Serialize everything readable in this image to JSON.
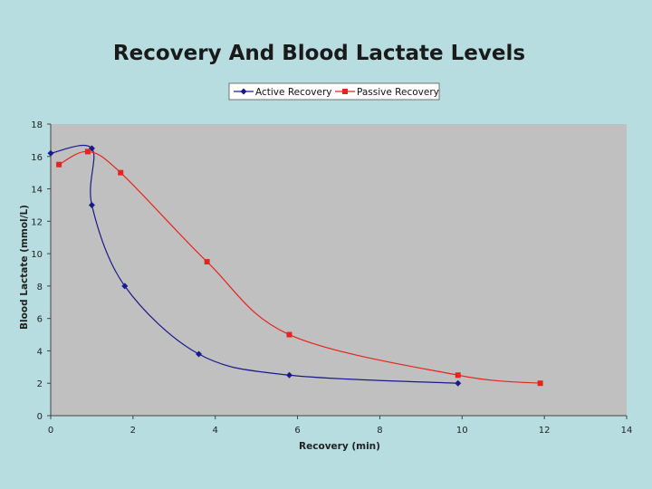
{
  "chart_data": {
    "type": "line",
    "title": "Recovery And Blood Lactate Levels",
    "xlabel": "Recovery (min)",
    "ylabel": "Blood Lactate (mmol/L)",
    "xlim": [
      0,
      14
    ],
    "ylim": [
      0,
      18
    ],
    "xticks": [
      0,
      2,
      4,
      6,
      8,
      10,
      12,
      14
    ],
    "yticks": [
      0,
      2,
      4,
      6,
      8,
      10,
      12,
      14,
      16,
      18
    ],
    "grid": false,
    "legend_position": "top-center",
    "series": [
      {
        "name": "Active Recovery",
        "color": "#1a1a8c",
        "marker": "diamond",
        "points": [
          [
            0,
            16.2
          ],
          [
            1,
            16.5
          ],
          [
            1,
            13
          ],
          [
            1.8,
            8
          ],
          [
            3.6,
            3.8
          ],
          [
            5.8,
            2.5
          ],
          [
            9.9,
            2
          ]
        ]
      },
      {
        "name": "Passive Recovery",
        "color": "#e8231e",
        "marker": "square",
        "points": [
          [
            0.2,
            15.5
          ],
          [
            0.9,
            16.3
          ],
          [
            1.7,
            15
          ],
          [
            3.8,
            9.5
          ],
          [
            5.8,
            5
          ],
          [
            9.9,
            2.5
          ],
          [
            11.9,
            2
          ]
        ]
      }
    ]
  }
}
